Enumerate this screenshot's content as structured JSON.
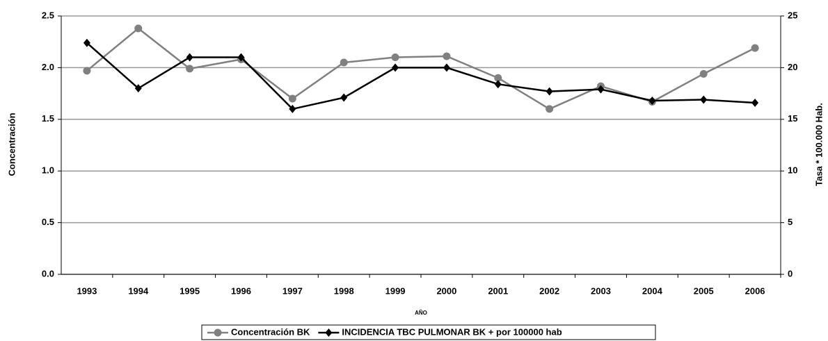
{
  "chart_data": {
    "type": "line",
    "x_label": "AÑO",
    "y_label": "Concentración",
    "y2_label": "Tasa * 100.000 Hab.",
    "categories": [
      "1993",
      "1994",
      "1995",
      "1996",
      "1997",
      "1998",
      "1999",
      "2000",
      "2001",
      "2002",
      "2003",
      "2004",
      "2005",
      "2006"
    ],
    "series": [
      {
        "name": "Concentración BK",
        "color": "#808080",
        "marker": "circle",
        "values": [
          1.97,
          2.38,
          1.99,
          2.08,
          1.7,
          2.05,
          2.1,
          2.11,
          1.9,
          1.6,
          1.82,
          1.67,
          1.94,
          2.19
        ]
      },
      {
        "name": "INCIDENCIA TBC PULMONAR BK + por 100000 hab",
        "color": "#000000",
        "marker": "diamond",
        "axis": "y2",
        "values": [
          22.4,
          18.0,
          21.0,
          21.0,
          16.0,
          17.1,
          20.0,
          20.0,
          18.4,
          17.7,
          17.9,
          16.8,
          16.9,
          16.6
        ]
      }
    ],
    "ylim": [
      0,
      2.5
    ],
    "yticks": [
      {
        "value": 0,
        "label": "0.0"
      },
      0.5,
      {
        "value": 1,
        "label": "1.0"
      },
      1.5,
      {
        "value": 2,
        "label": "2.0"
      },
      2.5
    ],
    "y2lim": [
      0,
      25
    ],
    "y2ticks": [
      0,
      5,
      10,
      15,
      20,
      25
    ],
    "grid": true,
    "legend": "bottom"
  }
}
